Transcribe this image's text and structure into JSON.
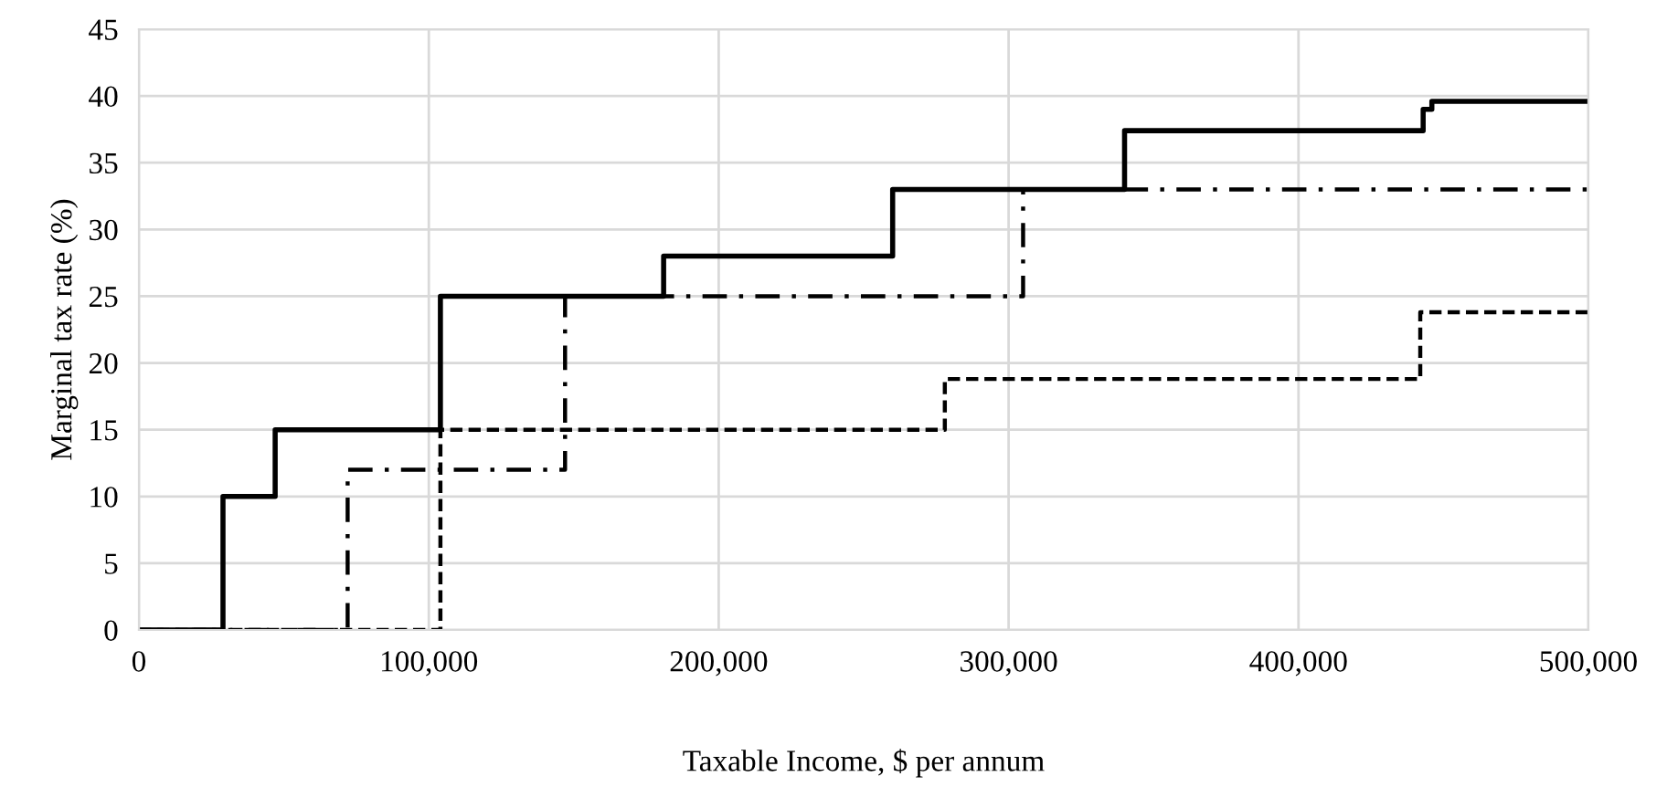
{
  "chart_data": {
    "type": "step",
    "xlabel": "Taxable Income, $ per annum",
    "ylabel": "Marginal tax rate (%)",
    "xlim": [
      0,
      500000
    ],
    "xticks": [
      {
        "value": 0,
        "label": "0"
      },
      {
        "value": 100000,
        "label": "100,000"
      },
      {
        "value": 200000,
        "label": "200,000"
      },
      {
        "value": 300000,
        "label": "300,000"
      },
      {
        "value": 400000,
        "label": "400,000"
      },
      {
        "value": 500000,
        "label": "500,000"
      }
    ],
    "ylim": [
      0,
      45
    ],
    "yticks": [
      0,
      5,
      10,
      15,
      20,
      25,
      30,
      35,
      40,
      45
    ],
    "grid": true,
    "marker": "none",
    "series": [
      {
        "color": "#000000",
        "line_style": "solid",
        "x": [
          0,
          29000,
          47000,
          104000,
          181000,
          260000,
          340000,
          443000,
          446000,
          500000
        ],
        "values": [
          0,
          10,
          15,
          25,
          28,
          33,
          37.4,
          39,
          39.6,
          39.6
        ]
      },
      {
        "color": "#000000",
        "line_style": "dashdot",
        "x": [
          0,
          72000,
          147000,
          305000,
          500000
        ],
        "values": [
          0,
          12,
          25,
          33,
          33
        ]
      },
      {
        "color": "#000000",
        "line_style": "dashed",
        "x": [
          0,
          104000,
          278000,
          442000,
          500000
        ],
        "values": [
          0,
          15,
          18.8,
          23.8,
          23.8
        ]
      }
    ]
  }
}
